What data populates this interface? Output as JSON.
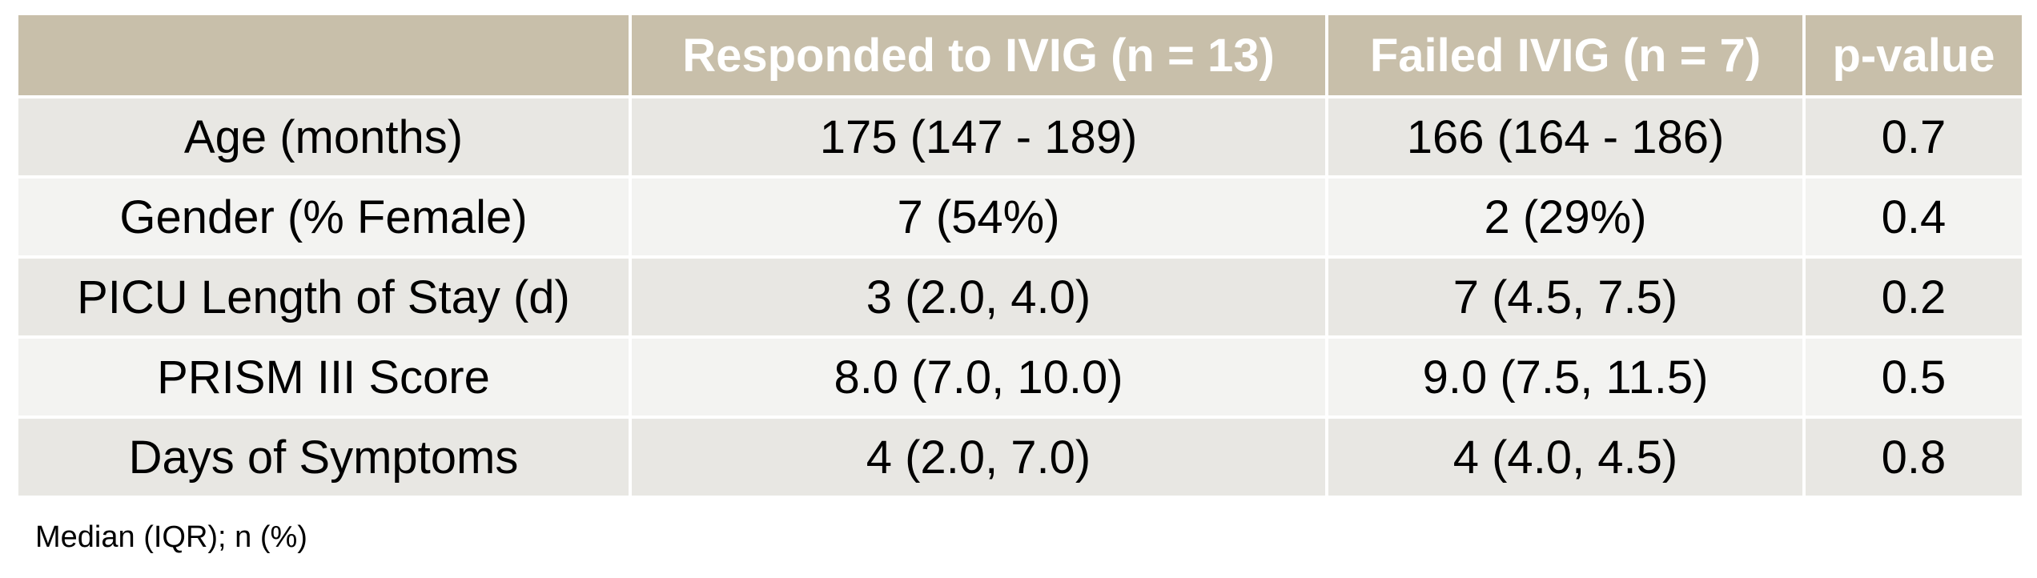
{
  "table": {
    "headers": [
      "",
      "Responded to IVIG (n = 13)",
      "Failed IVIG (n = 7)",
      "p-value"
    ],
    "rows": [
      [
        "Age (months)",
        "175 (147 - 189)",
        "166 (164 - 186)",
        "0.7"
      ],
      [
        "Gender (% Female)",
        "7 (54%)",
        "2 (29%)",
        "0.4"
      ],
      [
        "PICU Length of Stay (d)",
        "3 (2.0, 4.0)",
        "7 (4.5, 7.5)",
        "0.2"
      ],
      [
        "PRISM III Score",
        "8.0 (7.0, 10.0)",
        "9.0 (7.5, 11.5)",
        "0.5"
      ],
      [
        "Days of Symptoms",
        "4 (2.0, 7.0)",
        "4 (4.0, 4.5)",
        "0.8"
      ]
    ]
  },
  "footnote": "Median (IQR); n (%)",
  "colors": {
    "header_bg": "#c8bfaa",
    "header_text": "#ffffff",
    "row_dark": "#e8e7e3",
    "row_light": "#f3f3f1"
  }
}
